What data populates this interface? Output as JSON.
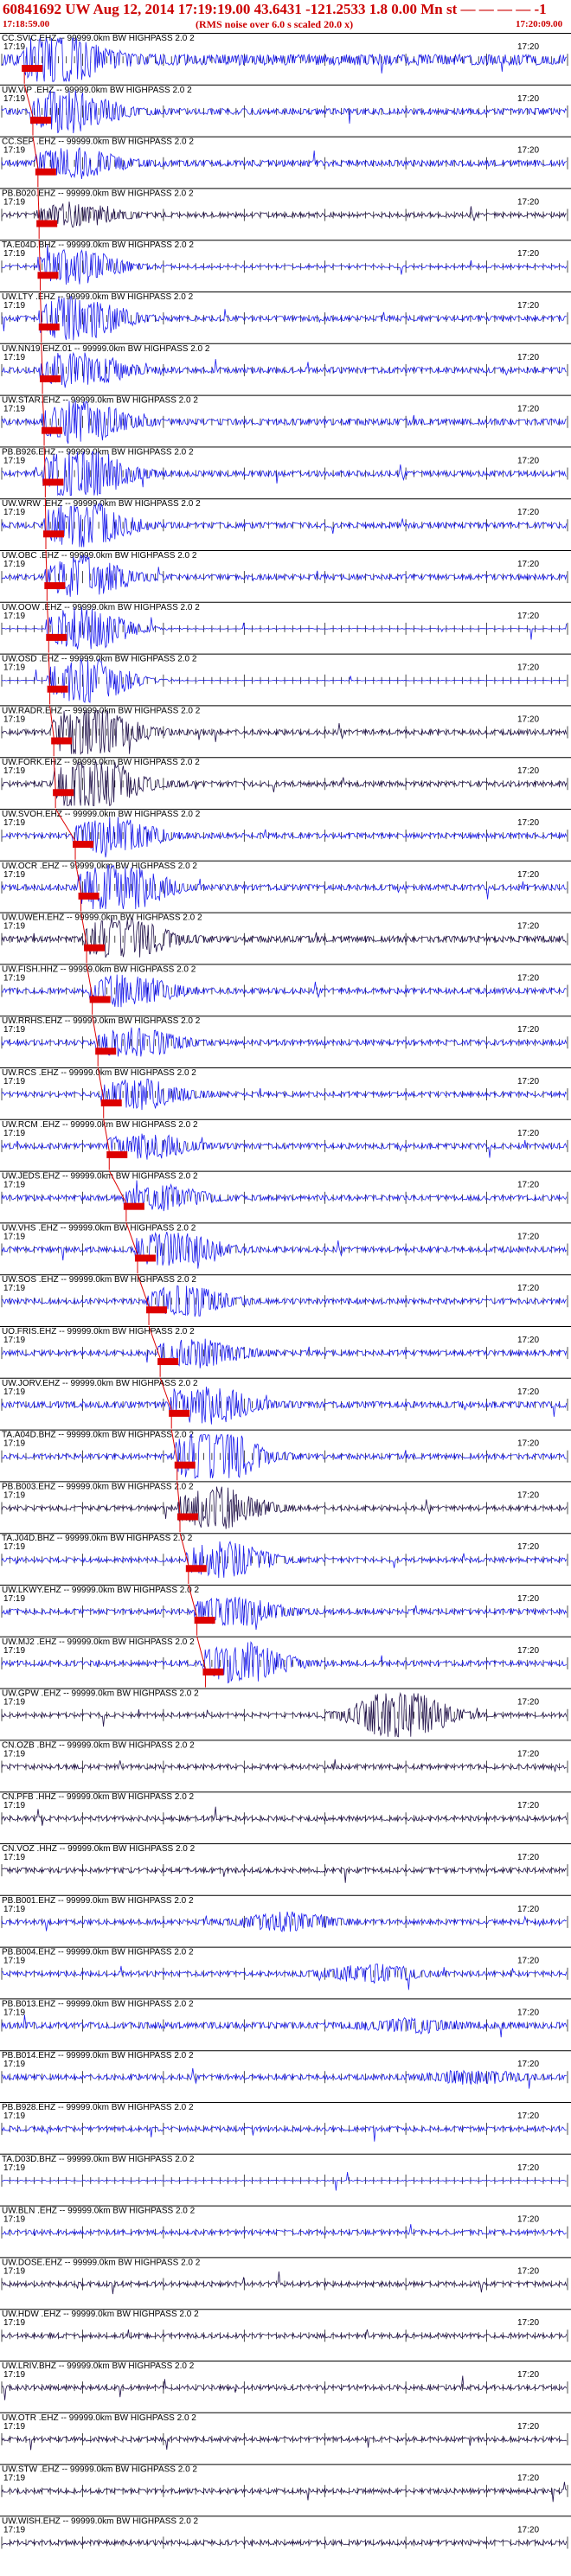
{
  "header": {
    "title": "60841692 UW Aug 12, 2014 17:19:19.00   43.6431  -121.2533   1.8  0.00  Mn st  — — — —  -1",
    "subtitle": "(RMS noise over 6.0 s scaled 20.0 x)",
    "time_start": "17:18:59.00",
    "time_end": "17:20:09.00"
  },
  "chart_data": {
    "type": "line",
    "title": "60841692 UW Aug 12, 2014 17:19:19.00   43.6431  -121.2533   1.8  0.00  Mn st  — — — —  -1",
    "subtitle": "(RMS noise over 6.0 s scaled 20.0 x)",
    "x_range": [
      "17:18:59.00",
      "17:20:09.00"
    ],
    "tick_labels": [
      "17:19",
      "17:20"
    ],
    "grid": false,
    "colors": {
      "trace_primary": "#1a1aee",
      "trace_secondary": "#20104a",
      "pick": "#dd0000",
      "text": "#000000",
      "header": "#cc0000"
    },
    "traces": [
      {
        "label": "CC.SVIC.EHZ -- 99999.0km BW  HIGHPASS  2.0  2",
        "pick": 0.04,
        "amp": 0.9,
        "event": 0.8,
        "color": "#1a1aee"
      },
      {
        "label": "UW.VIP .EHZ -- 99999.0km BW  HIGHPASS  2.0  2",
        "pick": 0.055,
        "amp": 0.5,
        "event": 0.7,
        "color": "#1a1aee"
      },
      {
        "label": "CC.SEP .EHZ -- 99999.0km BW  HIGHPASS  2.0  2",
        "pick": 0.064,
        "amp": 0.5,
        "event": 0.5,
        "color": "#1a1aee"
      },
      {
        "label": "PB.B020.EHZ -- 99999.0km BW  HIGHPASS  2.0  2",
        "pick": 0.066,
        "amp": 0.35,
        "event": 0.4,
        "color": "#20104a"
      },
      {
        "label": "TA.E04D.BHZ -- 99999.0km BW  HIGHPASS  2.0  2",
        "pick": 0.068,
        "amp": 0.25,
        "event": 0.6,
        "color": "#1a1aee"
      },
      {
        "label": "UW.LTY .EHZ -- 99999.0km BW  HIGHPASS  2.0  2",
        "pick": 0.07,
        "amp": 0.4,
        "event": 0.8,
        "color": "#1a1aee"
      },
      {
        "label": "UW.NN19.EHZ.01 -- 99999.0km BW  HIGHPASS  2.0  2",
        "pick": 0.072,
        "amp": 0.45,
        "event": 0.6,
        "color": "#1a1aee"
      },
      {
        "label": "UW.STAR.EHZ -- 99999.0km BW  HIGHPASS  2.0  2",
        "pick": 0.075,
        "amp": 0.5,
        "event": 0.7,
        "color": "#1a1aee"
      },
      {
        "label": "PB.B926.EHZ -- 99999.0km BW  HIGHPASS  2.0  2",
        "pick": 0.077,
        "amp": 0.45,
        "event": 0.9,
        "color": "#1a1aee"
      },
      {
        "label": "UW.WRW .EHZ -- 99999.0km BW  HIGHPASS  2.0  2",
        "pick": 0.078,
        "amp": 0.45,
        "event": 0.8,
        "color": "#1a1aee"
      },
      {
        "label": "UW.OBC .EHZ -- 99999.0km BW  HIGHPASS  2.0  2",
        "pick": 0.08,
        "amp": 0.4,
        "event": 0.7,
        "color": "#1a1aee"
      },
      {
        "label": "UW.OOW .EHZ -- 99999.0km BW  HIGHPASS  2.0  2",
        "pick": 0.083,
        "amp": 0.05,
        "event": 0.8,
        "color": "#1a1aee"
      },
      {
        "label": "UW.OSD .EHZ -- 99999.0km BW  HIGHPASS  2.0  2",
        "pick": 0.085,
        "amp": 0.05,
        "event": 0.8,
        "color": "#1a1aee"
      },
      {
        "label": "UW.RADR.EHZ -- 99999.0km BW  HIGHPASS  2.0  2",
        "pick": 0.092,
        "amp": 0.4,
        "event": 0.9,
        "color": "#20104a"
      },
      {
        "label": "UW.FORK.EHZ -- 99999.0km BW  HIGHPASS  2.0  2",
        "pick": 0.095,
        "amp": 0.4,
        "event": 1.0,
        "color": "#20104a"
      },
      {
        "label": "UW.SVOH.EHZ -- 99999.0km BW  HIGHPASS  2.0  2",
        "pick": 0.13,
        "amp": 0.4,
        "event": 0.6,
        "color": "#1a1aee"
      },
      {
        "label": "UW.OCR .EHZ -- 99999.0km BW  HIGHPASS  2.0  2",
        "pick": 0.14,
        "amp": 0.45,
        "event": 0.9,
        "color": "#1a1aee"
      },
      {
        "label": "UW.UWEH.EHZ -- 99999.0km BW  HIGHPASS  2.0  2",
        "pick": 0.15,
        "amp": 0.5,
        "event": 0.7,
        "color": "#20104a"
      },
      {
        "label": "UW.FISH.HHZ -- 99999.0km BW  HIGHPASS  2.0  2",
        "pick": 0.16,
        "amp": 0.45,
        "event": 0.5,
        "color": "#1a1aee"
      },
      {
        "label": "UW.RRHS.EHZ -- 99999.0km BW  HIGHPASS  2.0  2",
        "pick": 0.17,
        "amp": 0.4,
        "event": 0.5,
        "color": "#1a1aee"
      },
      {
        "label": "UW.RCS .EHZ -- 99999.0km BW  HIGHPASS  2.0  2",
        "pick": 0.18,
        "amp": 0.35,
        "event": 0.5,
        "color": "#1a1aee"
      },
      {
        "label": "UW.RCM .EHZ -- 99999.0km BW  HIGHPASS  2.0  2",
        "pick": 0.19,
        "amp": 0.4,
        "event": 0.4,
        "color": "#1a1aee"
      },
      {
        "label": "UW.JEDS.EHZ -- 99999.0km BW  HIGHPASS  2.0  2",
        "pick": 0.22,
        "amp": 0.4,
        "event": 0.4,
        "color": "#1a1aee"
      },
      {
        "label": "UW.VHS .EHZ -- 99999.0km BW  HIGHPASS  2.0  2",
        "pick": 0.24,
        "amp": 0.4,
        "event": 0.6,
        "color": "#1a1aee"
      },
      {
        "label": "UW.SOS .EHZ -- 99999.0km BW  HIGHPASS  2.0  2",
        "pick": 0.26,
        "amp": 0.4,
        "event": 0.5,
        "color": "#1a1aee"
      },
      {
        "label": "UO.FRIS.EHZ -- 99999.0km BW  HIGHPASS  2.0  2",
        "pick": 0.28,
        "amp": 0.4,
        "event": 0.5,
        "color": "#1a1aee"
      },
      {
        "label": "UW.JORV.EHZ -- 99999.0km BW  HIGHPASS  2.0  2",
        "pick": 0.3,
        "amp": 0.5,
        "event": 0.6,
        "color": "#1a1aee"
      },
      {
        "label": "TA.A04D.BHZ -- 99999.0km BW  HIGHPASS  2.0  2",
        "pick": 0.31,
        "amp": 0.4,
        "event": 1.0,
        "color": "#1a1aee"
      },
      {
        "label": "PB.B003.EHZ -- 99999.0km BW  HIGHPASS  2.0  2",
        "pick": 0.315,
        "amp": 0.35,
        "event": 0.7,
        "color": "#20104a"
      },
      {
        "label": "TA.J04D.BHZ -- 99999.0km BW  HIGHPASS  2.0  2",
        "pick": 0.33,
        "amp": 0.35,
        "event": 0.6,
        "color": "#1a1aee"
      },
      {
        "label": "UW.LKWY.EHZ -- 99999.0km BW  HIGHPASS  2.0  2",
        "pick": 0.345,
        "amp": 0.4,
        "event": 0.5,
        "color": "#1a1aee"
      },
      {
        "label": "UW.MJ2 .EHZ -- 99999.0km BW  HIGHPASS  2.0  2",
        "pick": 0.36,
        "amp": 0.4,
        "event": 0.7,
        "color": "#1a1aee"
      },
      {
        "label": "UW.GPW .EHZ -- 99999.0km BW  HIGHPASS  2.0  2",
        "pick": null,
        "amp": 0.3,
        "event": 0.9,
        "color": "#20104a"
      },
      {
        "label": "CN.OZB .BHZ -- 99999.0km BW  HIGHPASS  2.0  2",
        "pick": null,
        "amp": 0.35,
        "event": 0.0,
        "color": "#20104a"
      },
      {
        "label": "CN.PFB .HHZ -- 99999.0km BW  HIGHPASS  2.0  2",
        "pick": null,
        "amp": 0.35,
        "event": 0.0,
        "color": "#20104a"
      },
      {
        "label": "CN.VOZ .HHZ -- 99999.0km BW  HIGHPASS  2.0  2",
        "pick": null,
        "amp": 0.35,
        "event": 0.0,
        "color": "#20104a"
      },
      {
        "label": "PB.B001.EHZ -- 99999.0km BW  HIGHPASS  2.0  2",
        "pick": null,
        "amp": 0.35,
        "event": 0.3,
        "color": "#1a1aee"
      },
      {
        "label": "PB.B004.EHZ -- 99999.0km BW  HIGHPASS  2.0  2",
        "pick": null,
        "amp": 0.35,
        "event": 0.3,
        "color": "#1a1aee"
      },
      {
        "label": "PB.B013.EHZ -- 99999.0km BW  HIGHPASS  2.0  2",
        "pick": null,
        "amp": 0.5,
        "event": 0.2,
        "color": "#1a1aee"
      },
      {
        "label": "PB.B014.EHZ -- 99999.0km BW  HIGHPASS  2.0  2",
        "pick": null,
        "amp": 0.4,
        "event": 0.2,
        "color": "#1a1aee"
      },
      {
        "label": "PB.B928.EHZ -- 99999.0km BW  HIGHPASS  2.0  2",
        "pick": null,
        "amp": 0.35,
        "event": 0.0,
        "color": "#1a1aee"
      },
      {
        "label": "TA.D03D.BHZ -- 99999.0km BW  HIGHPASS  2.0  2",
        "pick": null,
        "amp": 0.08,
        "event": 0.0,
        "color": "#1a1aee"
      },
      {
        "label": "UW.BLN .EHZ -- 99999.0km BW  HIGHPASS  2.0  2",
        "pick": null,
        "amp": 0.35,
        "event": 0.0,
        "color": "#1a1aee"
      },
      {
        "label": "UW.DOSE.EHZ -- 99999.0km BW  HIGHPASS  2.0  2",
        "pick": null,
        "amp": 0.35,
        "event": 0.0,
        "color": "#20104a"
      },
      {
        "label": "UW.HDW .EHZ -- 99999.0km BW  HIGHPASS  2.0  2",
        "pick": null,
        "amp": 0.35,
        "event": 0.0,
        "color": "#20104a"
      },
      {
        "label": "UW.LRIV.BHZ -- 99999.0km BW  HIGHPASS  2.0  2",
        "pick": null,
        "amp": 0.35,
        "event": 0.0,
        "color": "#20104a"
      },
      {
        "label": "UW.OTR .EHZ -- 99999.0km BW  HIGHPASS  2.0  2",
        "pick": null,
        "amp": 0.35,
        "event": 0.0,
        "color": "#20104a"
      },
      {
        "label": "UW.STW .EHZ -- 99999.0km BW  HIGHPASS  2.0  2",
        "pick": null,
        "amp": 0.35,
        "event": 0.0,
        "color": "#20104a"
      },
      {
        "label": "UW.WISH.EHZ -- 99999.0km BW  HIGHPASS  2.0  2",
        "pick": null,
        "amp": 0.35,
        "event": 0.0,
        "color": "#20104a"
      }
    ]
  }
}
